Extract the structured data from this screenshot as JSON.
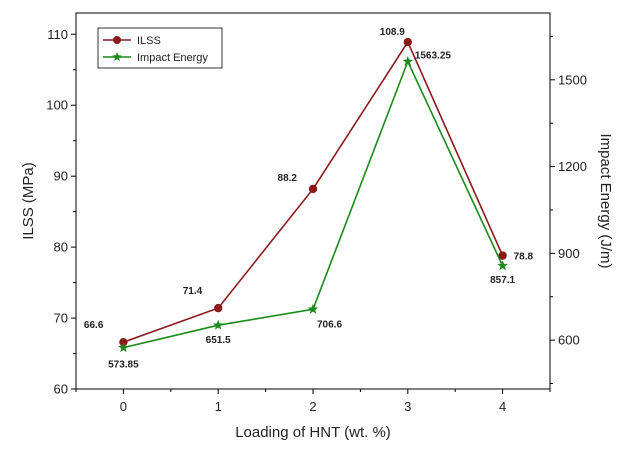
{
  "colors": {
    "ilss": "#8b1a1a",
    "impact": "#1a8a1a",
    "axis": "#000000"
  },
  "chart_data": {
    "type": "line",
    "x": [
      0,
      1,
      2,
      3,
      4
    ],
    "xlabel": "Loading of HNT (wt. %)",
    "xticks": [
      "0",
      "1",
      "2",
      "3",
      "4"
    ],
    "xlim": [
      -0.5,
      4.5
    ],
    "ylabel_left": "ILSS (MPa)",
    "ylabel_right": "Impact Energy (J/m)",
    "ylim_left": [
      60,
      113
    ],
    "ylim_right": [
      431,
      1731
    ],
    "yticks_left": [
      "60",
      "70",
      "80",
      "90",
      "100",
      "110"
    ],
    "yticks_right": [
      "600",
      "900",
      "1200",
      "1500"
    ],
    "legend_position": "top-left",
    "grid": false,
    "series": [
      {
        "name": "ILSS",
        "axis": "left",
        "marker": "circle",
        "color": "#8b1a1a",
        "values": [
          66.6,
          71.4,
          88.2,
          108.9,
          78.8
        ],
        "labels": [
          "66.6",
          "71.4",
          "88.2",
          "108.9",
          "78.8"
        ]
      },
      {
        "name": "Impact Energy",
        "axis": "right",
        "marker": "star",
        "color": "#1a8a1a",
        "values": [
          573.85,
          651.5,
          706.6,
          1563.25,
          857.1
        ],
        "labels": [
          "573.85",
          "651.5",
          "706.6",
          "1563.25",
          "857.1"
        ]
      }
    ]
  }
}
